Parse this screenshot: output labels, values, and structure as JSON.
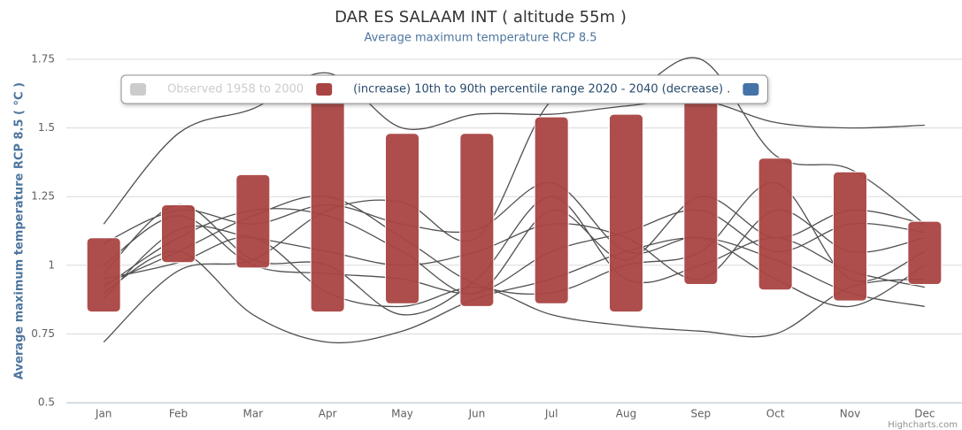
{
  "chart_data": {
    "type": "columnrange",
    "title": "DAR ES SALAAM INT ( altitude 55m )",
    "subtitle": "Average maximum temperature RCP 8.5",
    "y_axis_label": "Average maximum temperature RCP 8.5 ( °C )",
    "credits": "Highcharts.com",
    "categories": [
      "Jan",
      "Feb",
      "Mar",
      "Apr",
      "May",
      "Jun",
      "Jul",
      "Aug",
      "Sep",
      "Oct",
      "Nov",
      "Dec"
    ],
    "ylim": [
      0.5,
      1.75
    ],
    "yticks": [
      0.5,
      0.75,
      1,
      1.25,
      1.5,
      1.75
    ],
    "grid": true,
    "series": [
      {
        "name": "Observed 1958 to 2000",
        "color": "#cccccc",
        "type": "line",
        "hidden": true
      },
      {
        "name": "(increase) 10th to 90th percentile range 2020 - 2040 (decrease) .",
        "color": "#a94442",
        "type": "columnrange",
        "low": [
          0.83,
          1.01,
          0.99,
          0.83,
          0.86,
          0.85,
          0.86,
          0.83,
          0.93,
          0.91,
          0.87,
          0.93
        ],
        "high": [
          1.1,
          1.22,
          1.33,
          1.66,
          1.48,
          1.48,
          1.54,
          1.55,
          1.63,
          1.39,
          1.34,
          1.16
        ]
      },
      {
        "color": "#4572a7",
        "type": "columnrange"
      },
      {
        "type": "spline",
        "color": "#505050",
        "values": [
          1.15,
          1.48,
          1.57,
          1.7,
          1.5,
          1.55,
          1.55,
          1.58,
          1.6,
          1.52,
          1.5,
          1.51
        ]
      },
      {
        "type": "spline",
        "color": "#505050",
        "values": [
          0.72,
          0.98,
          1.02,
          1.2,
          1.23,
          1.1,
          1.6,
          1.62,
          1.75,
          1.4,
          1.35,
          1.15
        ]
      },
      {
        "type": "spline",
        "color": "#505050",
        "values": [
          0.9,
          1.05,
          0.82,
          0.72,
          0.76,
          0.88,
          0.95,
          1.05,
          1.1,
          1.02,
          0.9,
          0.85
        ]
      },
      {
        "type": "spline",
        "color": "#505050",
        "values": [
          0.92,
          1.1,
          1.2,
          1.18,
          1.05,
          0.9,
          1.2,
          1.02,
          1.25,
          1.1,
          1.2,
          1.15
        ]
      },
      {
        "type": "spline",
        "color": "#505050",
        "values": [
          1.08,
          1.2,
          1.15,
          1.22,
          1.15,
          1.13,
          1.3,
          1.05,
          1.1,
          0.95,
          0.85,
          1.0
        ]
      },
      {
        "type": "spline",
        "color": "#505050",
        "values": [
          0.95,
          1.01,
          1.1,
          0.9,
          0.85,
          0.92,
          0.82,
          0.78,
          0.76,
          0.75,
          0.92,
          0.95
        ]
      },
      {
        "type": "spline",
        "color": "#505050",
        "values": [
          0.88,
          1.13,
          1.1,
          1.05,
          1.0,
          1.05,
          1.15,
          1.1,
          0.95,
          1.2,
          1.05,
          1.1
        ]
      },
      {
        "type": "spline",
        "color": "#505050",
        "values": [
          1.0,
          1.18,
          1.0,
          0.97,
          0.95,
          0.9,
          1.05,
          1.12,
          1.2,
          1.05,
          1.15,
          1.12
        ]
      },
      {
        "type": "spline",
        "color": "#505050",
        "values": [
          0.93,
          1.05,
          1.18,
          1.25,
          1.1,
          0.93,
          0.9,
          1.0,
          1.05,
          1.3,
          0.95,
          1.05
        ]
      },
      {
        "type": "spline",
        "color": "#505050",
        "values": [
          0.97,
          1.22,
          1.02,
          1.0,
          0.82,
          0.95,
          1.25,
          0.95,
          1.0,
          1.1,
          0.98,
          0.92
        ]
      }
    ]
  }
}
